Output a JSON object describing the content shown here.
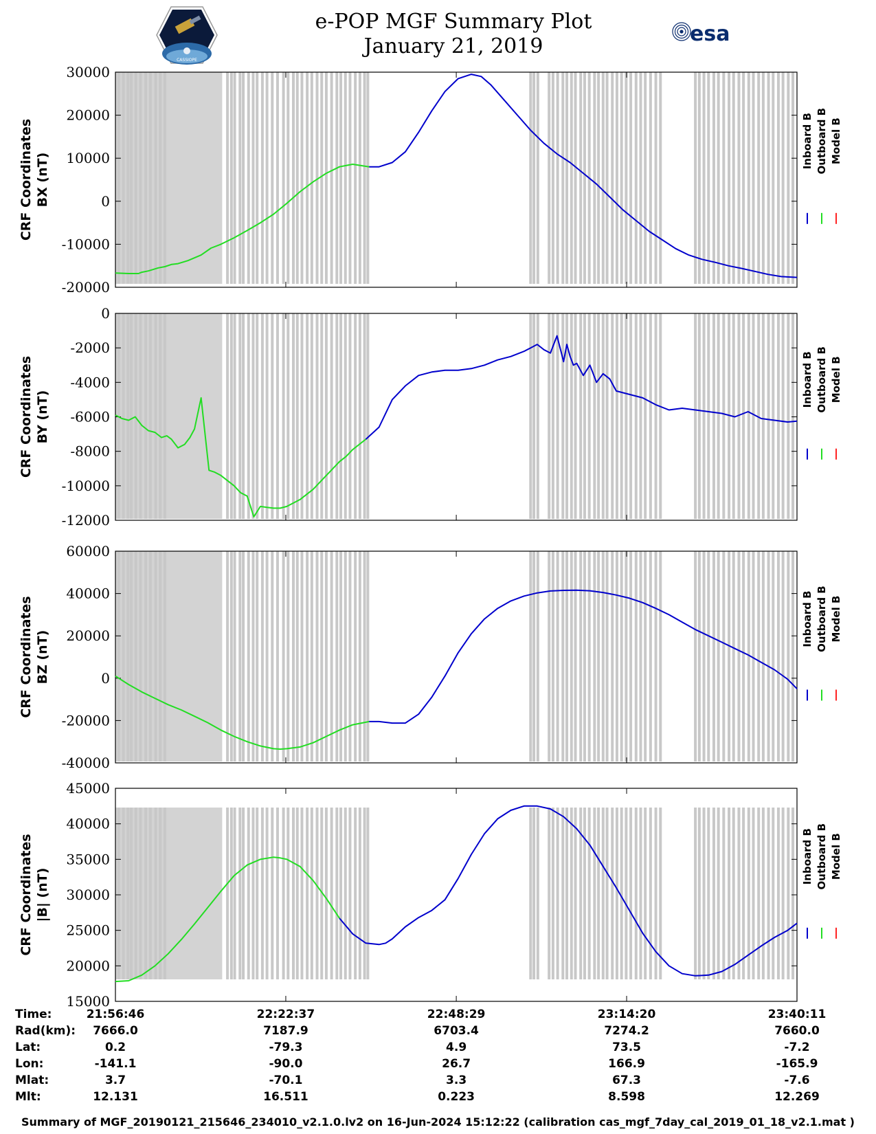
{
  "title": {
    "line1": "e-POP MGF Summary Plot",
    "line2": "January 21, 2019"
  },
  "logos": {
    "left_caption": "CASSIOPE",
    "right_text": "esa"
  },
  "legend": [
    "Inboard B",
    "Outboard B",
    "Model B"
  ],
  "colors": {
    "inboard": "#0000cc",
    "outboard": "#22dd22",
    "model": "#ff2222",
    "gap_shading": "#d3d3d3",
    "gap_lines": "#c8c8c8"
  },
  "time_axis": {
    "ticks": [
      "21:56:46",
      "22:22:37",
      "22:48:29",
      "23:14:20",
      "23:40:11"
    ],
    "tick_positions": [
      0,
      25.85,
      51.72,
      77.57,
      103.42
    ],
    "range_minutes": [
      0,
      103.42
    ]
  },
  "gap_data": {
    "dense_range_minutes": [
      0,
      16.2
    ],
    "line_times": [
      0.5,
      1.2,
      1.9,
      2.4,
      3.1,
      3.8,
      4.6,
      5.3,
      6.1,
      6.8,
      7.5,
      17.0,
      17.6,
      18.1,
      18.9,
      19.4,
      20.2,
      20.9,
      21.5,
      22.3,
      23.0,
      23.8,
      24.6,
      25.5,
      26.2,
      27.0,
      27.6,
      28.3,
      29.1,
      29.8,
      30.6,
      31.3,
      32.0,
      32.8,
      33.6,
      34.2,
      34.9,
      35.6,
      36.4,
      37.1,
      37.8,
      38.3,
      63.0,
      63.5,
      64.1,
      65.8,
      66.4,
      67.1,
      67.9,
      68.5,
      69.2,
      69.8,
      70.6,
      71.2,
      71.9,
      72.7,
      73.3,
      74.0,
      74.6,
      75.4,
      76.1,
      76.8,
      77.5,
      78.2,
      79.0,
      79.7,
      80.4,
      81.2,
      82.0,
      82.7,
      88.0,
      88.6,
      89.3,
      90.0,
      90.8,
      91.5,
      92.3,
      93.1,
      93.8,
      94.6,
      95.3,
      96.1,
      96.8,
      97.6,
      98.3,
      99.1,
      99.8,
      100.6,
      101.3,
      102.1,
      102.8
    ]
  },
  "chart_data": [
    {
      "type": "line",
      "ylabel_line1": "CRF Coordinates",
      "ylabel_line2": "BX (nT)",
      "ylim": [
        -20000,
        30000
      ],
      "yticks": [
        30000,
        20000,
        10000,
        0,
        -10000,
        -20000
      ],
      "ytick_labels": [
        "30000",
        "20000",
        "10000",
        "0",
        "-10000",
        "-20000"
      ],
      "series": [
        {
          "name": "Outboard B",
          "x": [
            0,
            2,
            3.5,
            4,
            5,
            6.5,
            7.5,
            8.5,
            9.5,
            11,
            13,
            14.5,
            16,
            18,
            20,
            22,
            24,
            26,
            28,
            30,
            32,
            34,
            36,
            38.5
          ],
          "y": [
            -16700,
            -16800,
            -16800,
            -16500,
            -16200,
            -15500,
            -15200,
            -14700,
            -14500,
            -13800,
            -12500,
            -10900,
            -10000,
            -8500,
            -6800,
            -5000,
            -3000,
            -500,
            2200,
            4500,
            6500,
            8000,
            8600,
            8000
          ]
        },
        {
          "name": "Inboard B",
          "x": [
            38.5,
            40,
            42,
            44,
            46,
            48,
            50,
            52,
            54,
            55.5,
            57,
            59,
            61,
            63,
            65,
            67,
            69,
            71,
            73,
            75,
            77,
            79,
            81,
            83,
            85,
            87,
            89,
            91,
            93,
            95,
            97,
            99,
            101,
            103.42
          ],
          "y": [
            8000,
            8000,
            9000,
            11500,
            16000,
            21000,
            25500,
            28500,
            29500,
            29000,
            27000,
            23500,
            20000,
            16500,
            13500,
            11000,
            9000,
            6500,
            4000,
            1000,
            -2000,
            -4500,
            -7000,
            -9000,
            -11000,
            -12500,
            -13500,
            -14200,
            -15000,
            -15600,
            -16300,
            -17000,
            -17500,
            -17700
          ]
        }
      ]
    },
    {
      "type": "line",
      "ylabel_line1": "CRF Coordinates",
      "ylabel_line2": "BY (nT)",
      "ylim": [
        -12000,
        0
      ],
      "yticks": [
        0,
        -2000,
        -4000,
        -6000,
        -8000,
        -10000,
        -12000
      ],
      "ytick_labels": [
        "0",
        "-2000",
        "-4000",
        "-6000",
        "-8000",
        "-10000",
        "-12000"
      ],
      "series": [
        {
          "name": "Outboard B",
          "x": [
            0,
            1,
            2,
            3,
            4,
            5,
            6,
            7,
            7.8,
            8.5,
            9.5,
            10.5,
            11.3,
            12,
            13,
            14.2,
            15,
            16,
            17,
            18,
            19,
            20,
            21,
            22,
            23,
            24,
            25,
            26,
            27,
            28,
            29,
            30,
            31,
            32,
            33,
            34,
            35,
            36,
            37,
            38
          ],
          "y": [
            -5900,
            -6100,
            -6200,
            -6000,
            -6500,
            -6800,
            -6900,
            -7200,
            -7100,
            -7300,
            -7800,
            -7600,
            -7200,
            -6700,
            -4900,
            -9100,
            -9200,
            -9400,
            -9700,
            -10000,
            -10400,
            -10600,
            -11800,
            -11200,
            -11250,
            -11300,
            -11300,
            -11200,
            -11000,
            -10800,
            -10500,
            -10200,
            -9800,
            -9400,
            -9000,
            -8600,
            -8300,
            -7900,
            -7600,
            -7300
          ]
        },
        {
          "name": "Inboard B",
          "x": [
            38,
            40,
            42,
            44,
            46,
            48,
            50,
            52,
            54,
            56,
            58,
            60,
            62,
            63,
            64,
            65,
            66,
            67,
            68,
            68.5,
            69,
            69.5,
            70,
            71,
            72,
            73,
            74,
            75,
            76,
            78,
            80,
            82,
            84,
            86,
            88,
            90,
            92,
            94,
            96,
            98,
            100,
            102,
            103.42
          ],
          "y": [
            -7300,
            -6600,
            -5000,
            -4200,
            -3600,
            -3400,
            -3300,
            -3300,
            -3200,
            -3000,
            -2700,
            -2500,
            -2200,
            -2000,
            -1800,
            -2100,
            -2300,
            -1300,
            -2800,
            -1800,
            -2500,
            -3000,
            -2900,
            -3600,
            -3000,
            -4000,
            -3500,
            -3800,
            -4500,
            -4700,
            -4900,
            -5300,
            -5600,
            -5500,
            -5600,
            -5700,
            -5800,
            -6000,
            -5700,
            -6100,
            -6200,
            -6300,
            -6250
          ]
        }
      ]
    },
    {
      "type": "line",
      "ylabel_line1": "CRF Coordinates",
      "ylabel_line2": "BZ (nT)",
      "ylim": [
        -40000,
        60000
      ],
      "yticks": [
        60000,
        40000,
        20000,
        0,
        -20000,
        -40000
      ],
      "ytick_labels": [
        "60000",
        "40000",
        "20000",
        "0",
        "-20000",
        "-40000"
      ],
      "series": [
        {
          "name": "Outboard B",
          "x": [
            0,
            2,
            4,
            6,
            8,
            10,
            12,
            14,
            16,
            18,
            20,
            22,
            24,
            25,
            26,
            28,
            30,
            32,
            34,
            36,
            38.5
          ],
          "y": [
            1000,
            -3000,
            -6500,
            -9500,
            -12500,
            -15000,
            -18000,
            -21000,
            -24500,
            -27500,
            -30000,
            -32000,
            -33300,
            -33500,
            -33300,
            -32500,
            -30500,
            -27500,
            -24500,
            -22000,
            -20500
          ]
        },
        {
          "name": "Inboard B",
          "x": [
            38.5,
            40,
            42,
            44,
            46,
            48,
            50,
            52,
            54,
            56,
            58,
            60,
            62,
            64,
            66,
            68,
            70,
            72,
            74,
            76,
            78,
            80,
            82,
            84,
            86,
            88,
            90,
            92,
            94,
            96,
            98,
            100,
            102,
            103.42
          ],
          "y": [
            -20500,
            -20500,
            -21200,
            -21200,
            -17000,
            -9000,
            1000,
            12000,
            21000,
            28000,
            33000,
            36500,
            38800,
            40300,
            41200,
            41500,
            41600,
            41300,
            40500,
            39300,
            37800,
            35700,
            33000,
            30000,
            26500,
            23000,
            20000,
            17000,
            14000,
            11000,
            7500,
            4000,
            -500,
            -5000
          ]
        }
      ]
    },
    {
      "type": "line",
      "ylabel_line1": "CRF Coordinates",
      "ylabel_line2": "|B| (nT)",
      "ylim": [
        15000,
        45000
      ],
      "yticks": [
        45000,
        40000,
        35000,
        30000,
        25000,
        20000,
        15000
      ],
      "ytick_labels": [
        "45000",
        "40000",
        "35000",
        "30000",
        "25000",
        "20000",
        "15000"
      ],
      "series": [
        {
          "name": "Outboard B",
          "x": [
            0,
            2,
            4,
            6,
            8,
            10,
            12,
            14,
            16,
            18,
            20,
            22,
            24,
            25,
            26,
            28,
            30,
            32,
            34
          ],
          "y": [
            17800,
            17900,
            18700,
            20000,
            21700,
            23700,
            25900,
            28200,
            30500,
            32700,
            34200,
            35000,
            35300,
            35200,
            35000,
            34000,
            32000,
            29500,
            26700
          ]
        },
        {
          "name": "Inboard B",
          "x": [
            34,
            36,
            38,
            40,
            41,
            42,
            44,
            46,
            48,
            50,
            52,
            54,
            56,
            58,
            60,
            62,
            64,
            66,
            68,
            70,
            72,
            74,
            76,
            78,
            80,
            82,
            84,
            86,
            88,
            90,
            92,
            94,
            96,
            98,
            100,
            102,
            103.42
          ],
          "y": [
            26700,
            24500,
            23200,
            23000,
            23200,
            23800,
            25500,
            26800,
            27800,
            29300,
            32300,
            35700,
            38600,
            40700,
            41900,
            42500,
            42500,
            42100,
            41000,
            39300,
            37000,
            34000,
            31000,
            27800,
            24600,
            22000,
            20000,
            18900,
            18600,
            18700,
            19200,
            20200,
            21500,
            22800,
            24000,
            25000,
            26000
          ]
        }
      ]
    }
  ],
  "info_table": {
    "rows": [
      {
        "label": "Time:",
        "values": [
          "21:56:46",
          "22:22:37",
          "22:48:29",
          "23:14:20",
          "23:40:11"
        ]
      },
      {
        "label": "Rad(km):",
        "values": [
          "7666.0",
          "7187.9",
          "6703.4",
          "7274.2",
          "7660.0"
        ]
      },
      {
        "label": "Lat:",
        "values": [
          "0.2",
          "-79.3",
          "4.9",
          "73.5",
          "-7.2"
        ]
      },
      {
        "label": "Lon:",
        "values": [
          "-141.1",
          "-90.0",
          "26.7",
          "166.9",
          "-165.9"
        ]
      },
      {
        "label": "Mlat:",
        "values": [
          "3.7",
          "-70.1",
          "3.3",
          "67.3",
          "-7.6"
        ]
      },
      {
        "label": "Mlt:",
        "values": [
          "12.131",
          "16.511",
          "0.223",
          "8.598",
          "12.269"
        ]
      }
    ]
  },
  "footer": "Summary of MGF_20190121_215646_234010_v2.1.0.lv2 on 16-Jun-2024 15:12:22 (calibration cas_mgf_7day_cal_2019_01_18_v2.1.mat )"
}
